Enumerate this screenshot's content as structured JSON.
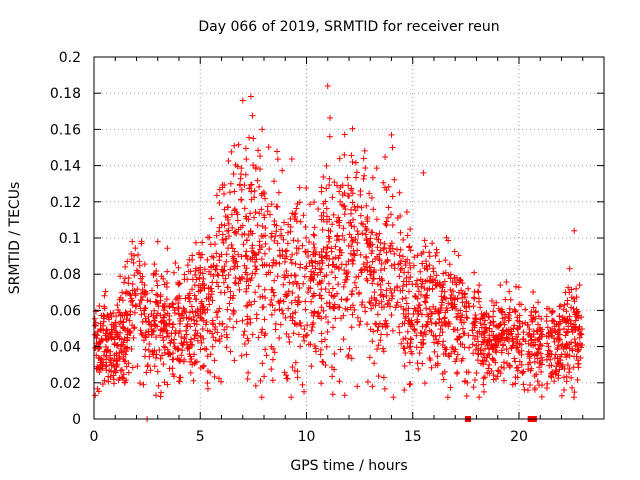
{
  "chart_data": {
    "type": "scatter",
    "title": "Day 066 of 2019, SRMTID for receiver reun",
    "xlabel": "GPS time / hours",
    "ylabel": "SRMTID / TECUs",
    "xlim": [
      0,
      24
    ],
    "ylim": [
      0,
      0.2
    ],
    "x_ticks": [
      {
        "value": 0,
        "label": "0"
      },
      {
        "value": 5,
        "label": "5"
      },
      {
        "value": 10,
        "label": "10"
      },
      {
        "value": 15,
        "label": "15"
      },
      {
        "value": 20,
        "label": "20"
      }
    ],
    "y_ticks": [
      {
        "value": 0,
        "label": "0"
      },
      {
        "value": 0.02,
        "label": "0.02"
      },
      {
        "value": 0.04,
        "label": "0.04"
      },
      {
        "value": 0.06,
        "label": "0.06"
      },
      {
        "value": 0.08,
        "label": "0.08"
      },
      {
        "value": 0.1,
        "label": "0.1"
      },
      {
        "value": 0.12,
        "label": "0.12"
      },
      {
        "value": 0.14,
        "label": "0.14"
      },
      {
        "value": 0.16,
        "label": "0.16"
      },
      {
        "value": 0.18,
        "label": "0.18"
      },
      {
        "value": 0.2,
        "label": "0.2"
      }
    ],
    "grid": true,
    "marker": "plus",
    "color": "#ff0000",
    "series": [
      {
        "name": "SRMTID",
        "profile": [
          {
            "x": 0.0,
            "y": 0.038
          },
          {
            "x": 0.5,
            "y": 0.044
          },
          {
            "x": 1.0,
            "y": 0.04
          },
          {
            "x": 1.5,
            "y": 0.05
          },
          {
            "x": 2.0,
            "y": 0.065
          },
          {
            "x": 2.5,
            "y": 0.05
          },
          {
            "x": 3.0,
            "y": 0.052
          },
          {
            "x": 3.5,
            "y": 0.05
          },
          {
            "x": 4.0,
            "y": 0.052
          },
          {
            "x": 4.5,
            "y": 0.055
          },
          {
            "x": 5.0,
            "y": 0.06
          },
          {
            "x": 5.5,
            "y": 0.065
          },
          {
            "x": 6.0,
            "y": 0.08
          },
          {
            "x": 6.5,
            "y": 0.09
          },
          {
            "x": 7.0,
            "y": 0.095
          },
          {
            "x": 7.5,
            "y": 0.095
          },
          {
            "x": 8.0,
            "y": 0.09
          },
          {
            "x": 8.5,
            "y": 0.082
          },
          {
            "x": 9.0,
            "y": 0.078
          },
          {
            "x": 9.5,
            "y": 0.075
          },
          {
            "x": 10.0,
            "y": 0.072
          },
          {
            "x": 10.5,
            "y": 0.075
          },
          {
            "x": 11.0,
            "y": 0.085
          },
          {
            "x": 11.5,
            "y": 0.082
          },
          {
            "x": 12.0,
            "y": 0.095
          },
          {
            "x": 12.5,
            "y": 0.09
          },
          {
            "x": 13.0,
            "y": 0.082
          },
          {
            "x": 13.5,
            "y": 0.072
          },
          {
            "x": 14.0,
            "y": 0.09
          },
          {
            "x": 14.5,
            "y": 0.07
          },
          {
            "x": 15.0,
            "y": 0.058
          },
          {
            "x": 15.5,
            "y": 0.062
          },
          {
            "x": 16.0,
            "y": 0.06
          },
          {
            "x": 16.5,
            "y": 0.058
          },
          {
            "x": 17.0,
            "y": 0.058
          },
          {
            "x": 17.5,
            "y": 0.052
          },
          {
            "x": 18.0,
            "y": 0.05
          },
          {
            "x": 18.5,
            "y": 0.04
          },
          {
            "x": 19.0,
            "y": 0.042
          },
          {
            "x": 19.5,
            "y": 0.045
          },
          {
            "x": 20.0,
            "y": 0.048
          },
          {
            "x": 20.5,
            "y": 0.042
          },
          {
            "x": 21.0,
            "y": 0.04
          },
          {
            "x": 21.5,
            "y": 0.042
          },
          {
            "x": 22.0,
            "y": 0.04
          },
          {
            "x": 22.5,
            "y": 0.05
          },
          {
            "x": 23.0,
            "y": 0.042
          }
        ],
        "gaps": [
          [
            10.45,
            10.52
          ],
          [
            17.7,
            17.8
          ],
          [
            20.3,
            20.4
          ],
          [
            21.1,
            21.3
          ]
        ],
        "highlights": [
          {
            "x": 7.0,
            "y": 0.176
          },
          {
            "x": 11.0,
            "y": 0.184
          },
          {
            "x": 7.5,
            "y": 0.155
          },
          {
            "x": 11.1,
            "y": 0.156
          },
          {
            "x": 14.0,
            "y": 0.157
          },
          {
            "x": 14.05,
            "y": 0.15
          },
          {
            "x": 6.6,
            "y": 0.151
          },
          {
            "x": 1.8,
            "y": 0.098
          },
          {
            "x": 3.0,
            "y": 0.098
          },
          {
            "x": 15.5,
            "y": 0.136
          },
          {
            "x": 22.6,
            "y": 0.104
          },
          {
            "x": 2.5,
            "y": 0.0
          },
          {
            "x": 13.1,
            "y": 0.018
          },
          {
            "x": 14.6,
            "y": 0.016
          }
        ],
        "zero_markers": [
          {
            "x": 17.6,
            "y": 0.0
          },
          {
            "x": 20.55,
            "y": 0.0
          },
          {
            "x": 20.7,
            "y": 0.0
          }
        ]
      }
    ]
  }
}
